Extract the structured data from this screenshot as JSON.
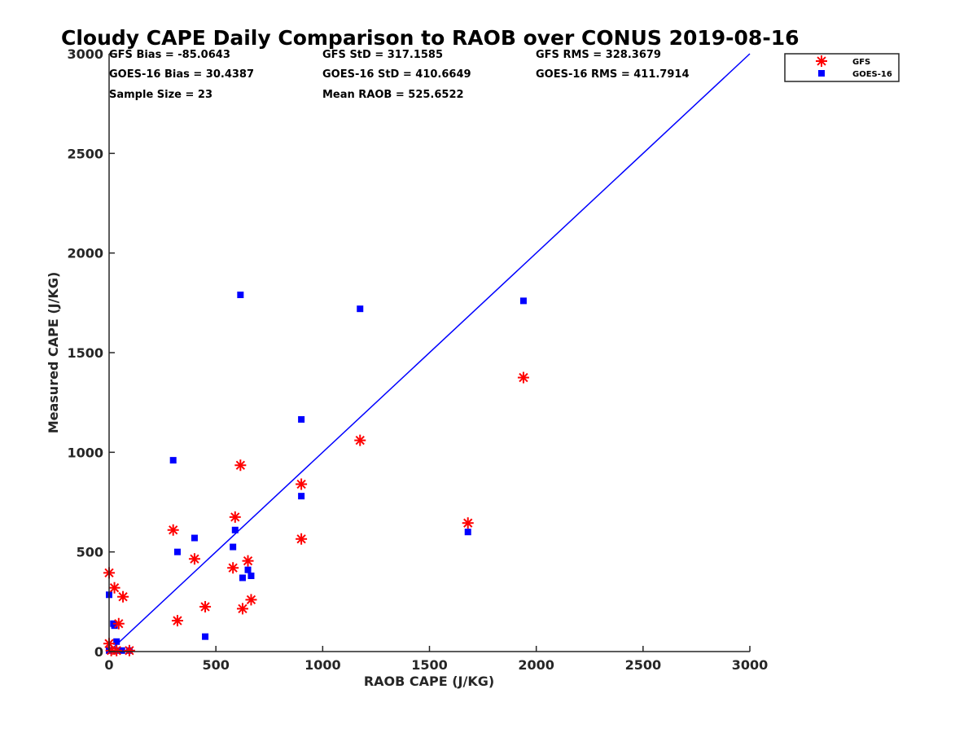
{
  "chart_data": {
    "type": "scatter",
    "title": "Cloudy CAPE Daily Comparison to RAOB over CONUS 2019-08-16",
    "xlabel": "RAOB CAPE (J/KG)",
    "ylabel": "Measured CAPE (J/KG)",
    "xlim": [
      0,
      3000
    ],
    "ylim": [
      0,
      3000
    ],
    "xticks": [
      "0",
      "500",
      "1000",
      "1500",
      "2000",
      "2500",
      "3000"
    ],
    "yticks": [
      "0",
      "500",
      "1000",
      "1500",
      "2000",
      "2500",
      "3000"
    ],
    "grid": false,
    "legend_position": "outside-top-right",
    "stats": {
      "gfs_bias": "GFS Bias = -85.0643",
      "gfs_std": "GFS StD = 317.1585",
      "gfs_rms": "GFS RMS = 328.3679",
      "goes_bias": "GOES-16 Bias = 30.4387",
      "goes_std": "GOES-16 StD = 410.6649",
      "goes_rms": "GOES-16 RMS = 411.7914",
      "sample_size": "Sample Size = 23",
      "mean_raob": "Mean RAOB = 525.6522"
    },
    "series": [
      {
        "name": "GFS",
        "marker": "asterisk",
        "color": "#ff0000",
        "points": [
          [
            0,
            395
          ],
          [
            0,
            40
          ],
          [
            25,
            320
          ],
          [
            35,
            5
          ],
          [
            45,
            140
          ],
          [
            65,
            275
          ],
          [
            95,
            5
          ],
          [
            300,
            610
          ],
          [
            320,
            155
          ],
          [
            400,
            465
          ],
          [
            450,
            225
          ],
          [
            580,
            420
          ],
          [
            590,
            675
          ],
          [
            615,
            935
          ],
          [
            625,
            215
          ],
          [
            650,
            455
          ],
          [
            665,
            260
          ],
          [
            900,
            840
          ],
          [
            900,
            565
          ],
          [
            1175,
            1060
          ],
          [
            1680,
            645
          ],
          [
            1940,
            1375
          ],
          [
            10,
            5
          ]
        ]
      },
      {
        "name": "GOES-16",
        "marker": "square",
        "color": "#0000ff",
        "points": [
          [
            0,
            285
          ],
          [
            0,
            5
          ],
          [
            20,
            140
          ],
          [
            25,
            130
          ],
          [
            35,
            50
          ],
          [
            40,
            5
          ],
          [
            95,
            5
          ],
          [
            300,
            960
          ],
          [
            320,
            500
          ],
          [
            400,
            570
          ],
          [
            450,
            75
          ],
          [
            580,
            525
          ],
          [
            590,
            610
          ],
          [
            615,
            1790
          ],
          [
            625,
            370
          ],
          [
            650,
            410
          ],
          [
            665,
            380
          ],
          [
            900,
            1165
          ],
          [
            900,
            780
          ],
          [
            1175,
            1720
          ],
          [
            1680,
            600
          ],
          [
            1940,
            1760
          ],
          [
            60,
            5
          ]
        ]
      },
      {
        "name": "",
        "type": "line",
        "color": "#0000ff",
        "points": [
          [
            0,
            0
          ],
          [
            3000,
            3000
          ]
        ]
      }
    ]
  }
}
